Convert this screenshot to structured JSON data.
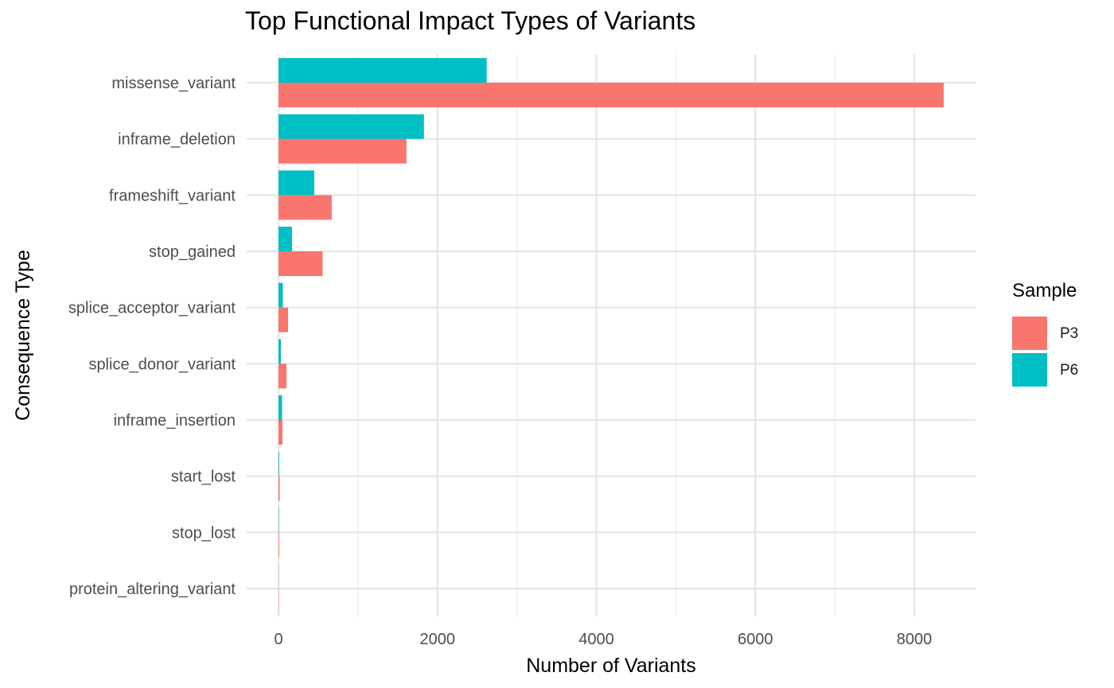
{
  "chart_data": {
    "type": "bar",
    "orientation": "horizontal",
    "title": "Top Functional Impact Types of Variants",
    "xlabel": "Number of Variants",
    "ylabel": "Consequence Type",
    "xlim": [
      0,
      8800
    ],
    "xticks": [
      0,
      2000,
      4000,
      6000,
      8000
    ],
    "categories": [
      "missense_variant",
      "inframe_deletion",
      "frameshift_variant",
      "stop_gained",
      "splice_acceptor_variant",
      "splice_donor_variant",
      "inframe_insertion",
      "start_lost",
      "stop_lost",
      "protein_altering_variant"
    ],
    "series": [
      {
        "name": "P3",
        "color": "#F8766D",
        "values": [
          8370,
          1610,
          670,
          555,
          120,
          100,
          50,
          15,
          8,
          3
        ]
      },
      {
        "name": "P6",
        "color": "#00BFC4",
        "values": [
          2620,
          1830,
          450,
          170,
          55,
          30,
          45,
          8,
          5,
          2
        ]
      }
    ],
    "legend": {
      "title": "Sample",
      "position": "right"
    },
    "grid": true
  }
}
